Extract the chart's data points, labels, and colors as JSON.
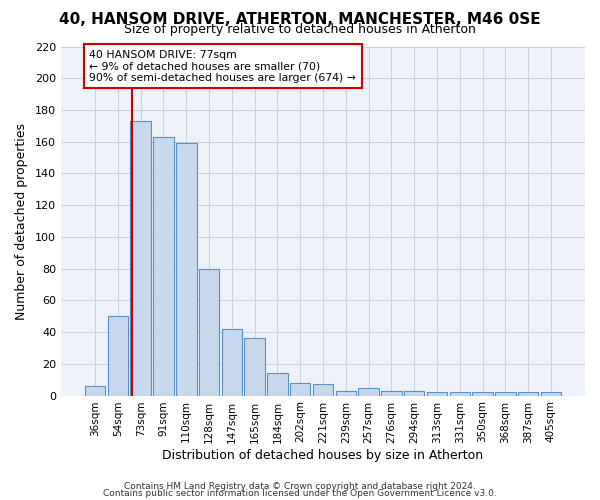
{
  "title": "40, HANSOM DRIVE, ATHERTON, MANCHESTER, M46 0SE",
  "subtitle": "Size of property relative to detached houses in Atherton",
  "xlabel": "Distribution of detached houses by size in Atherton",
  "ylabel": "Number of detached properties",
  "bar_labels": [
    "36sqm",
    "54sqm",
    "73sqm",
    "91sqm",
    "110sqm",
    "128sqm",
    "147sqm",
    "165sqm",
    "184sqm",
    "202sqm",
    "221sqm",
    "239sqm",
    "257sqm",
    "276sqm",
    "294sqm",
    "313sqm",
    "331sqm",
    "350sqm",
    "368sqm",
    "387sqm",
    "405sqm"
  ],
  "bar_heights": [
    6,
    50,
    173,
    163,
    159,
    80,
    42,
    36,
    14,
    8,
    7,
    3,
    5,
    3,
    3,
    2,
    2,
    2,
    2,
    2,
    2
  ],
  "bar_color": "#c8d8ec",
  "bar_edge_color": "#5590c8",
  "ylim": [
    0,
    220
  ],
  "yticks": [
    0,
    20,
    40,
    60,
    80,
    100,
    120,
    140,
    160,
    180,
    200,
    220
  ],
  "property_label": "40 HANSOM DRIVE: 77sqm",
  "annotation_line1": "← 9% of detached houses are smaller (70)",
  "annotation_line2": "90% of semi-detached houses are larger (674) →",
  "vline_bar_index": 2,
  "vline_color": "#cc0000",
  "annotation_box_color": "#ffffff",
  "annotation_box_edge_color": "#cc0000",
  "footer1": "Contains HM Land Registry data © Crown copyright and database right 2024.",
  "footer2": "Contains public sector information licensed under the Open Government Licence v3.0.",
  "bg_color": "#ffffff",
  "plot_bg_color": "#eef2f8",
  "grid_color": "#c8d0dc"
}
